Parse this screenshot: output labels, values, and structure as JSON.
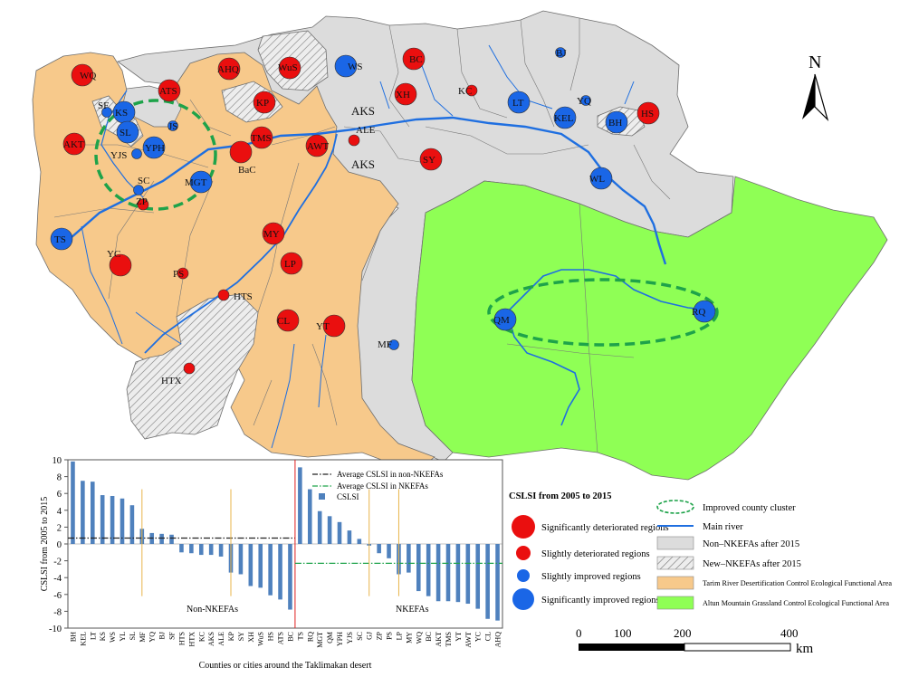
{
  "colors": {
    "tarim_area": "#f7c98b",
    "altun_area": "#8fff55",
    "non_nkefa": "#dcdcdc",
    "river": "#1f6fe0",
    "deteriorated": "#ea0f0f",
    "improved": "#1a66e6",
    "cluster": "#1ea34a",
    "bar": "#4f81bd",
    "border": "#666666"
  },
  "map": {
    "north_label": "N",
    "cluster_ellipses": 2,
    "labels": {
      "aks1": "AKS",
      "aks2": "AKS",
      "sf": "SF",
      "kp_top": "SF"
    },
    "markers": [
      {
        "code": "WQ",
        "status": "significantly-deteriorated"
      },
      {
        "code": "AHQ",
        "status": "significantly-deteriorated"
      },
      {
        "code": "WuS",
        "status": "significantly-deteriorated"
      },
      {
        "code": "WS",
        "status": "significantly-improved"
      },
      {
        "code": "BC",
        "status": "significantly-deteriorated"
      },
      {
        "code": "BJ",
        "status": "slightly-improved"
      },
      {
        "code": "ATS",
        "status": "significantly-deteriorated"
      },
      {
        "code": "KP",
        "status": "significantly-deteriorated"
      },
      {
        "code": "XH",
        "status": "significantly-deteriorated"
      },
      {
        "code": "KC",
        "status": "slightly-deteriorated"
      },
      {
        "code": "LT",
        "status": "significantly-improved"
      },
      {
        "code": "YQ",
        "status": "slightly-improved"
      },
      {
        "code": "BH",
        "status": "significantly-improved"
      },
      {
        "code": "HS",
        "status": "significantly-deteriorated"
      },
      {
        "code": "KS",
        "status": "significantly-improved"
      },
      {
        "code": "SF",
        "status": "slightly-improved"
      },
      {
        "code": "JS",
        "status": "slightly-improved"
      },
      {
        "code": "SL",
        "status": "significantly-improved"
      },
      {
        "code": "YPH",
        "status": "significantly-improved"
      },
      {
        "code": "AKT",
        "status": "significantly-deteriorated"
      },
      {
        "code": "YJS",
        "status": "slightly-improved"
      },
      {
        "code": "TMS",
        "status": "significantly-deteriorated"
      },
      {
        "code": "BaC",
        "status": "significantly-deteriorated"
      },
      {
        "code": "AWT",
        "status": "significantly-deteriorated"
      },
      {
        "code": "ALE",
        "status": "slightly-deteriorated"
      },
      {
        "code": "KEL",
        "status": "significantly-improved"
      },
      {
        "code": "SY",
        "status": "significantly-deteriorated"
      },
      {
        "code": "WL",
        "status": "significantly-improved"
      },
      {
        "code": "SC",
        "status": "slightly-improved"
      },
      {
        "code": "MGT",
        "status": "significantly-improved"
      },
      {
        "code": "ZP",
        "status": "slightly-deteriorated"
      },
      {
        "code": "TS",
        "status": "significantly-improved"
      },
      {
        "code": "YC",
        "status": "significantly-deteriorated"
      },
      {
        "code": "MY",
        "status": "significantly-deteriorated"
      },
      {
        "code": "PS",
        "status": "slightly-deteriorated"
      },
      {
        "code": "LP",
        "status": "significantly-deteriorated"
      },
      {
        "code": "HTS",
        "status": "slightly-deteriorated"
      },
      {
        "code": "CL",
        "status": "significantly-deteriorated"
      },
      {
        "code": "YT",
        "status": "significantly-deteriorated"
      },
      {
        "code": "MF",
        "status": "slightly-improved"
      },
      {
        "code": "HTX",
        "status": "slightly-deteriorated"
      },
      {
        "code": "QM",
        "status": "significantly-improved"
      },
      {
        "code": "RQ",
        "status": "significantly-improved"
      }
    ]
  },
  "legend": {
    "title": "CSLSI from 2005 to 2015",
    "sig_det": "Significantly deteriorated regions",
    "sli_det": "Slightly deteriorated regions",
    "sli_imp": "Slightly improved regions",
    "sig_imp": "Significantly improved regions",
    "cluster": "Improved county cluster",
    "river": "Main river",
    "non_nkefa": "Non–NKEFAs after 2015",
    "new_nkefa": "New–NKEFAs after 2015",
    "tarim": "Tarim River Desertification Control Ecological Functional Area",
    "altun": "Altun Mountain Grassland Control Ecological Functional Area"
  },
  "scale": {
    "ticks": [
      "0",
      "100",
      "200",
      "400"
    ],
    "unit": "km"
  },
  "chart_data": {
    "type": "bar",
    "ylabel": "CSLSI from 2005 to 2015",
    "xlabel": "Counties or cities around the Taklimakan desert",
    "ylim": [
      -10,
      10
    ],
    "yticks": [
      10,
      8,
      6,
      4,
      2,
      0,
      -2,
      -4,
      -6,
      -8,
      -10
    ],
    "legend": {
      "avg_non": "Average CSLSI in non-NKEFAs",
      "avg_nk": "Average CSLSI in NKEFAs",
      "bar": "CSLSI"
    },
    "groups": [
      {
        "name": "Non-NKEFAs",
        "average": 0.7,
        "categories": [
          "BH",
          "KEL",
          "LT",
          "KS",
          "WS",
          "YL",
          "SL",
          "MF",
          "YQ",
          "BJ",
          "SF",
          "HTS",
          "HTX",
          "KC",
          "AKS",
          "ALE",
          "KP",
          "SY",
          "XH",
          "WuS",
          "HS",
          "ATS",
          "BC"
        ],
        "values": [
          9.8,
          7.5,
          7.4,
          5.8,
          5.7,
          5.4,
          4.6,
          1.8,
          1.3,
          1.2,
          1.1,
          -1.0,
          -1.1,
          -1.3,
          -1.3,
          -1.5,
          -3.4,
          -3.6,
          -5.0,
          -5.2,
          -6.1,
          -6.6,
          -7.8
        ]
      },
      {
        "name": "NKEFAs",
        "average": -2.3,
        "categories": [
          "TS",
          "RQ",
          "MGT",
          "QM",
          "YPH",
          "YJS",
          "SC",
          "GJ",
          "ZP",
          "PS",
          "LP",
          "MY",
          "WQ",
          "BC",
          "AKT",
          "TMS",
          "YT",
          "AWT",
          "YC",
          "CL",
          "AHQ"
        ],
        "values": [
          9.1,
          6.5,
          3.9,
          3.3,
          2.6,
          1.6,
          0.6,
          -0.2,
          -1.1,
          -1.7,
          -3.6,
          -3.4,
          -5.6,
          -6.2,
          -6.8,
          -6.8,
          -6.9,
          -7.1,
          -7.7,
          -8.9,
          -9.1
        ]
      }
    ]
  }
}
